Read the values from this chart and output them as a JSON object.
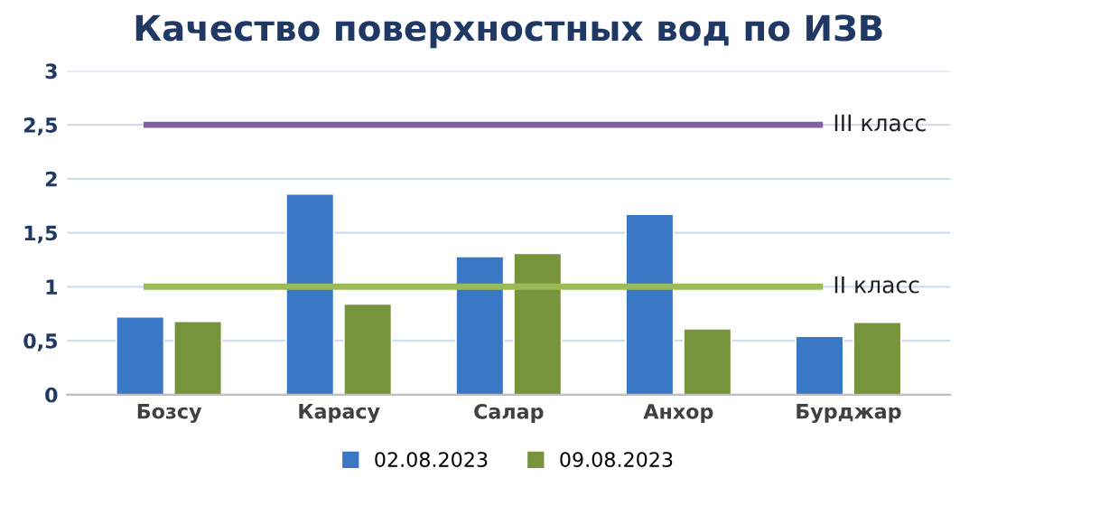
{
  "chart_data": {
    "type": "bar",
    "title": "Качество поверхностных вод по ИЗВ",
    "categories": [
      "Бозсу",
      "Карасу",
      "Салар",
      "Анхор",
      "Бурджар"
    ],
    "series": [
      {
        "name": "02.08.2023",
        "color": "#3a78c6",
        "values": [
          0.72,
          1.86,
          1.28,
          1.67,
          0.54
        ]
      },
      {
        "name": "09.08.2023",
        "color": "#77933c",
        "values": [
          0.68,
          0.84,
          1.31,
          0.61,
          0.67
        ]
      }
    ],
    "ylim": [
      0,
      3
    ],
    "yticks": [
      0,
      {
        "value": 0.5,
        "label": "0,5"
      },
      1,
      {
        "value": 1.5,
        "label": "1,5"
      },
      2,
      {
        "value": 2.5,
        "label": "2,5"
      },
      3
    ],
    "ref_lines": [
      {
        "axis": "y",
        "value": 2.5,
        "label": "III класс",
        "color": "#8064a2"
      },
      {
        "axis": "y",
        "value": 1,
        "label": "II класс",
        "color": "#9bbb59"
      }
    ],
    "grid": "y",
    "legend": "bottom"
  }
}
